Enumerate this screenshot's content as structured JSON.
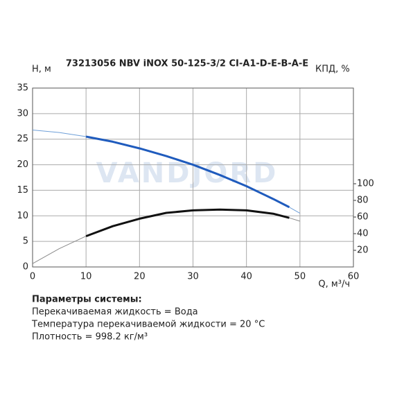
{
  "chart_data": {
    "type": "line",
    "title": "73213056 NBV iNOX 50-125-3/2 CI-A1-D-E-B-A-E",
    "ylabel": "H, м",
    "y2label": "КПД, %",
    "xlabel": "Q, м³/ч",
    "watermark": "VANDJORD",
    "x": [
      0,
      5,
      10,
      15,
      20,
      25,
      30,
      35,
      40,
      45,
      48,
      50
    ],
    "xlim": [
      0,
      60
    ],
    "xticks": [
      0,
      10,
      20,
      30,
      40,
      50,
      60
    ],
    "ylim": [
      0,
      35
    ],
    "yticks": [
      0,
      5,
      10,
      15,
      20,
      25,
      30,
      35
    ],
    "y2lim": [
      0,
      215
    ],
    "y2ticks": [
      20,
      40,
      60,
      80,
      100
    ],
    "grid": true,
    "series": [
      {
        "color": "#6e9fd8",
        "width": 1,
        "values": [
          26.8,
          26.3,
          25.5,
          24.5,
          23.2,
          21.7,
          20.0,
          18.0,
          15.8,
          13.3,
          11.7,
          10.5
        ]
      },
      {
        "color": "#1f5bbd",
        "width": 3,
        "values": [
          null,
          null,
          25.5,
          24.5,
          23.2,
          21.7,
          20.0,
          18.0,
          15.8,
          13.3,
          11.7,
          null
        ]
      },
      {
        "color": "#8a8a8a",
        "width": 1,
        "axis": "y2",
        "values": [
          4,
          22,
          37,
          49,
          58,
          65,
          68,
          69,
          68,
          64,
          59,
          55
        ]
      },
      {
        "color": "#111111",
        "width": 3,
        "axis": "y2",
        "values": [
          null,
          null,
          37,
          49,
          58,
          65,
          68,
          69,
          68,
          64,
          59,
          null
        ]
      }
    ]
  },
  "params": {
    "title": "Параметры системы:",
    "lines": [
      "Перекачиваемая жидкость = Вода",
      "Температура перекачиваемой жидкости = 20 °C",
      "Плотность = 998.2 кг/м³"
    ]
  }
}
